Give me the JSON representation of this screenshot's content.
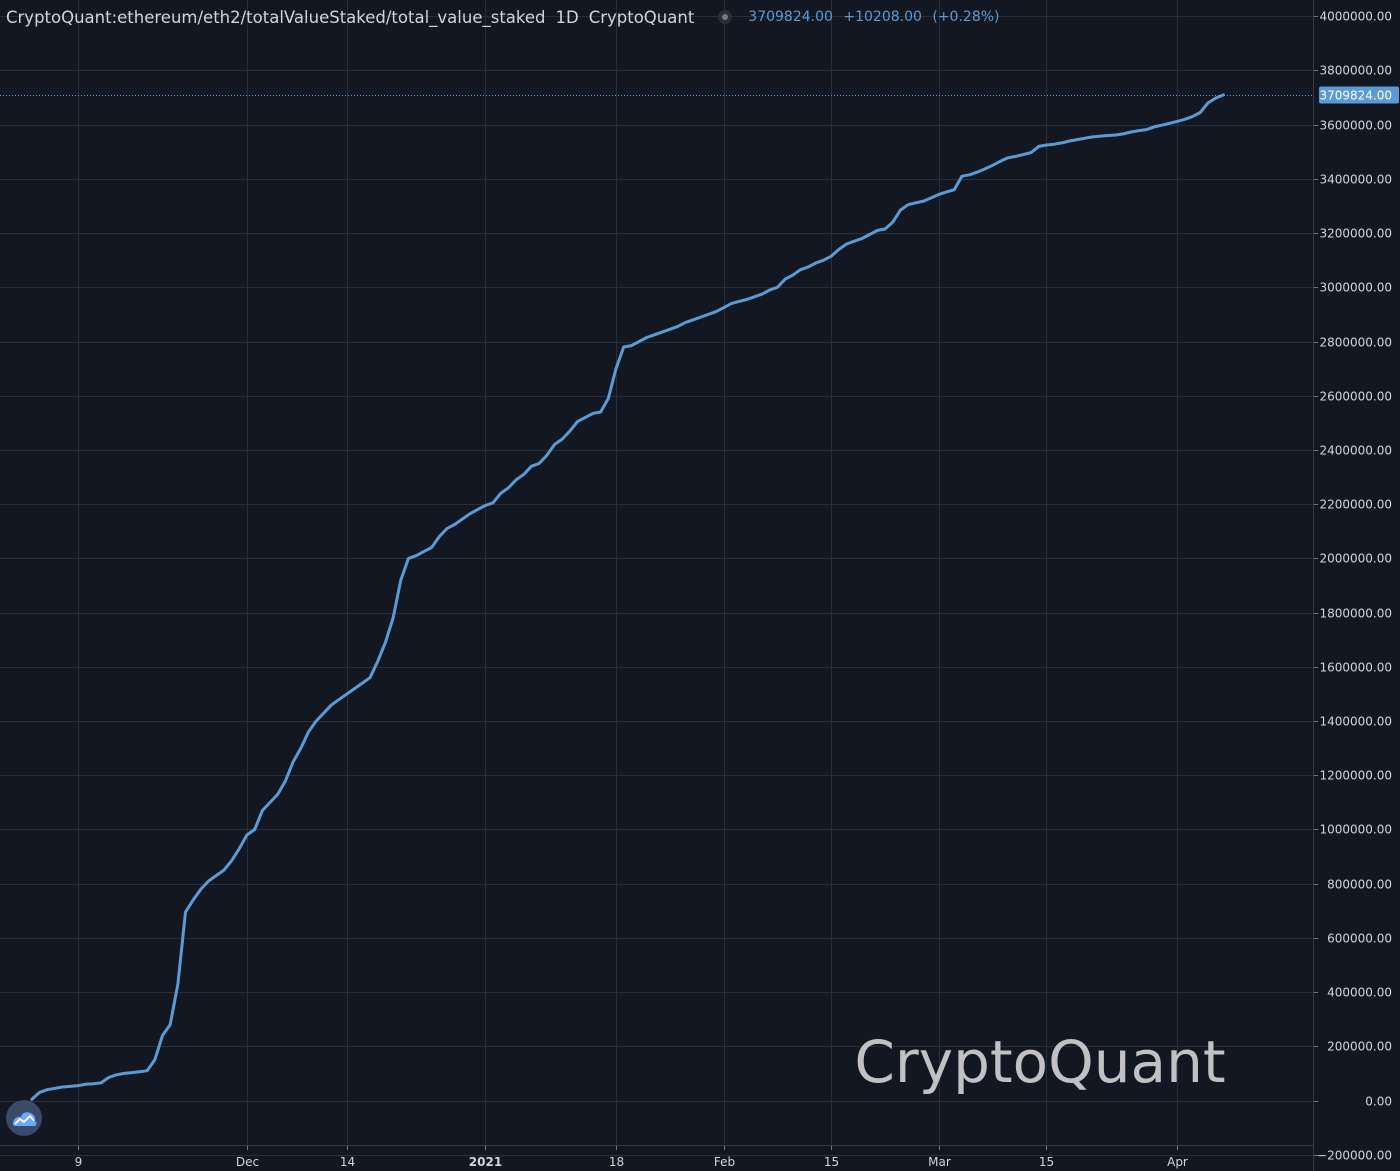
{
  "legend": {
    "symbol": "CryptoQuant:ethereum/eth2/totalValueStaked/total_value_staked",
    "interval": "1D",
    "source": "CryptoQuant",
    "last_value": "3709824.00",
    "change": "+10208.00",
    "change_pct": "(+0.28%)"
  },
  "watermark": "CryptoQuant",
  "colors": {
    "background": "#131722",
    "line": "#5b9bd5",
    "grid": "#2a2e39",
    "text": "#d1d4dc"
  },
  "chart_data": {
    "type": "line",
    "title": "CryptoQuant:ethereum/eth2/totalValueStaked/total_value_staked",
    "xlabel": "",
    "ylabel": "",
    "x_range": [
      "2020-11-04",
      "2021-04-12"
    ],
    "ylim": [
      -260000,
      4060000
    ],
    "grid": true,
    "y_ticks": [
      -200000,
      0,
      200000,
      400000,
      600000,
      800000,
      1000000,
      1200000,
      1400000,
      1600000,
      1800000,
      2000000,
      2200000,
      2400000,
      2600000,
      2800000,
      3000000,
      3200000,
      3400000,
      3600000,
      3800000,
      4000000
    ],
    "y_tick_labels": [
      "−200000.00",
      "0.00",
      "200000.00",
      "400000.00",
      "600000.00",
      "800000.00",
      "1000000.00",
      "1200000.00",
      "1400000.00",
      "1600000.00",
      "1800000.00",
      "2000000.00",
      "2200000.00",
      "2400000.00",
      "2600000.00",
      "2800000.00",
      "3000000.00",
      "3200000.00",
      "3400000.00",
      "3600000.00",
      "3800000.00",
      "4000000.00"
    ],
    "x_ticks": [
      {
        "date": "2020-11-09",
        "label": "9",
        "bold": false
      },
      {
        "date": "2020-12-01",
        "label": "Dec",
        "bold": false
      },
      {
        "date": "2020-12-14",
        "label": "14",
        "bold": false
      },
      {
        "date": "2021-01-01",
        "label": "2021",
        "bold": true
      },
      {
        "date": "2021-01-18",
        "label": "18",
        "bold": false
      },
      {
        "date": "2021-02-01",
        "label": "Feb",
        "bold": false
      },
      {
        "date": "2021-02-15",
        "label": "15",
        "bold": false
      },
      {
        "date": "2021-03-01",
        "label": "Mar",
        "bold": false
      },
      {
        "date": "2021-03-15",
        "label": "15",
        "bold": false
      },
      {
        "date": "2021-04-01",
        "label": "Apr",
        "bold": false
      }
    ],
    "series": [
      {
        "last_value_label": "3709824.00",
        "last_value": 3709824,
        "points": [
          [
            "2020-11-03",
            4000
          ],
          [
            "2020-11-04",
            30000
          ],
          [
            "2020-11-05",
            40000
          ],
          [
            "2020-11-06",
            45000
          ],
          [
            "2020-11-07",
            50000
          ],
          [
            "2020-11-08",
            52000
          ],
          [
            "2020-11-09",
            55000
          ],
          [
            "2020-11-10",
            60000
          ],
          [
            "2020-11-11",
            62000
          ],
          [
            "2020-11-12",
            65000
          ],
          [
            "2020-11-13",
            85000
          ],
          [
            "2020-11-14",
            95000
          ],
          [
            "2020-11-15",
            100000
          ],
          [
            "2020-11-16",
            103000
          ],
          [
            "2020-11-17",
            106000
          ],
          [
            "2020-11-18",
            110000
          ],
          [
            "2020-11-19",
            150000
          ],
          [
            "2020-11-20",
            240000
          ],
          [
            "2020-11-21",
            280000
          ],
          [
            "2020-11-22",
            430000
          ],
          [
            "2020-11-23",
            695000
          ],
          [
            "2020-11-24",
            740000
          ],
          [
            "2020-11-25",
            780000
          ],
          [
            "2020-11-26",
            810000
          ],
          [
            "2020-11-27",
            830000
          ],
          [
            "2020-11-28",
            850000
          ],
          [
            "2020-11-29",
            885000
          ],
          [
            "2020-11-30",
            930000
          ],
          [
            "2020-12-01",
            980000
          ],
          [
            "2020-12-02",
            1000000
          ],
          [
            "2020-12-03",
            1070000
          ],
          [
            "2020-12-04",
            1100000
          ],
          [
            "2020-12-05",
            1130000
          ],
          [
            "2020-12-06",
            1180000
          ],
          [
            "2020-12-07",
            1250000
          ],
          [
            "2020-12-08",
            1300000
          ],
          [
            "2020-12-09",
            1360000
          ],
          [
            "2020-12-10",
            1400000
          ],
          [
            "2020-12-11",
            1430000
          ],
          [
            "2020-12-12",
            1460000
          ],
          [
            "2020-12-13",
            1480000
          ],
          [
            "2020-12-14",
            1500000
          ],
          [
            "2020-12-15",
            1520000
          ],
          [
            "2020-12-16",
            1540000
          ],
          [
            "2020-12-17",
            1560000
          ],
          [
            "2020-12-18",
            1620000
          ],
          [
            "2020-12-19",
            1690000
          ],
          [
            "2020-12-20",
            1780000
          ],
          [
            "2020-12-21",
            1920000
          ],
          [
            "2020-12-22",
            2000000
          ],
          [
            "2020-12-23",
            2010000
          ],
          [
            "2020-12-24",
            2025000
          ],
          [
            "2020-12-25",
            2040000
          ],
          [
            "2020-12-26",
            2080000
          ],
          [
            "2020-12-27",
            2110000
          ],
          [
            "2020-12-28",
            2125000
          ],
          [
            "2020-12-29",
            2145000
          ],
          [
            "2020-12-30",
            2165000
          ],
          [
            "2020-12-31",
            2180000
          ],
          [
            "2021-01-01",
            2195000
          ],
          [
            "2021-01-02",
            2205000
          ],
          [
            "2021-01-03",
            2240000
          ],
          [
            "2021-01-04",
            2260000
          ],
          [
            "2021-01-05",
            2290000
          ],
          [
            "2021-01-06",
            2310000
          ],
          [
            "2021-01-07",
            2340000
          ],
          [
            "2021-01-08",
            2350000
          ],
          [
            "2021-01-09",
            2380000
          ],
          [
            "2021-01-10",
            2420000
          ],
          [
            "2021-01-11",
            2440000
          ],
          [
            "2021-01-12",
            2470000
          ],
          [
            "2021-01-13",
            2505000
          ],
          [
            "2021-01-14",
            2520000
          ],
          [
            "2021-01-15",
            2535000
          ],
          [
            "2021-01-16",
            2540000
          ],
          [
            "2021-01-17",
            2590000
          ],
          [
            "2021-01-18",
            2700000
          ],
          [
            "2021-01-19",
            2780000
          ],
          [
            "2021-01-20",
            2785000
          ],
          [
            "2021-01-21",
            2800000
          ],
          [
            "2021-01-22",
            2815000
          ],
          [
            "2021-01-23",
            2825000
          ],
          [
            "2021-01-24",
            2835000
          ],
          [
            "2021-01-25",
            2845000
          ],
          [
            "2021-01-26",
            2855000
          ],
          [
            "2021-01-27",
            2870000
          ],
          [
            "2021-01-28",
            2880000
          ],
          [
            "2021-01-29",
            2890000
          ],
          [
            "2021-01-30",
            2900000
          ],
          [
            "2021-01-31",
            2910000
          ],
          [
            "2021-02-01",
            2925000
          ],
          [
            "2021-02-02",
            2940000
          ],
          [
            "2021-02-03",
            2948000
          ],
          [
            "2021-02-04",
            2955000
          ],
          [
            "2021-02-05",
            2965000
          ],
          [
            "2021-02-06",
            2975000
          ],
          [
            "2021-02-07",
            2990000
          ],
          [
            "2021-02-08",
            3000000
          ],
          [
            "2021-02-09",
            3030000
          ],
          [
            "2021-02-10",
            3045000
          ],
          [
            "2021-02-11",
            3065000
          ],
          [
            "2021-02-12",
            3075000
          ],
          [
            "2021-02-13",
            3090000
          ],
          [
            "2021-02-14",
            3100000
          ],
          [
            "2021-02-15",
            3115000
          ],
          [
            "2021-02-16",
            3140000
          ],
          [
            "2021-02-17",
            3160000
          ],
          [
            "2021-02-18",
            3170000
          ],
          [
            "2021-02-19",
            3180000
          ],
          [
            "2021-02-20",
            3195000
          ],
          [
            "2021-02-21",
            3210000
          ],
          [
            "2021-02-22",
            3215000
          ],
          [
            "2021-02-23",
            3240000
          ],
          [
            "2021-02-24",
            3285000
          ],
          [
            "2021-02-25",
            3305000
          ],
          [
            "2021-02-26",
            3312000
          ],
          [
            "2021-02-27",
            3318000
          ],
          [
            "2021-02-28",
            3330000
          ],
          [
            "2021-03-01",
            3343000
          ],
          [
            "2021-03-02",
            3352000
          ],
          [
            "2021-03-03",
            3360000
          ],
          [
            "2021-03-04",
            3410000
          ],
          [
            "2021-03-05",
            3415000
          ],
          [
            "2021-03-06",
            3425000
          ],
          [
            "2021-03-07",
            3437000
          ],
          [
            "2021-03-08",
            3450000
          ],
          [
            "2021-03-09",
            3465000
          ],
          [
            "2021-03-10",
            3478000
          ],
          [
            "2021-03-11",
            3483000
          ],
          [
            "2021-03-12",
            3490000
          ],
          [
            "2021-03-13",
            3497000
          ],
          [
            "2021-03-14",
            3520000
          ],
          [
            "2021-03-15",
            3525000
          ],
          [
            "2021-03-16",
            3528000
          ],
          [
            "2021-03-17",
            3533000
          ],
          [
            "2021-03-18",
            3540000
          ],
          [
            "2021-03-19",
            3545000
          ],
          [
            "2021-03-20",
            3550000
          ],
          [
            "2021-03-21",
            3555000
          ],
          [
            "2021-03-22",
            3558000
          ],
          [
            "2021-03-23",
            3560000
          ],
          [
            "2021-03-24",
            3562000
          ],
          [
            "2021-03-25",
            3566000
          ],
          [
            "2021-03-26",
            3573000
          ],
          [
            "2021-03-27",
            3578000
          ],
          [
            "2021-03-28",
            3582000
          ],
          [
            "2021-03-29",
            3592000
          ],
          [
            "2021-03-30",
            3598000
          ],
          [
            "2021-03-31",
            3605000
          ],
          [
            "2021-04-01",
            3612000
          ],
          [
            "2021-04-02",
            3620000
          ],
          [
            "2021-04-03",
            3630000
          ],
          [
            "2021-04-04",
            3645000
          ],
          [
            "2021-04-05",
            3680000
          ],
          [
            "2021-04-06",
            3698000
          ],
          [
            "2021-04-07",
            3709824
          ]
        ]
      }
    ]
  }
}
